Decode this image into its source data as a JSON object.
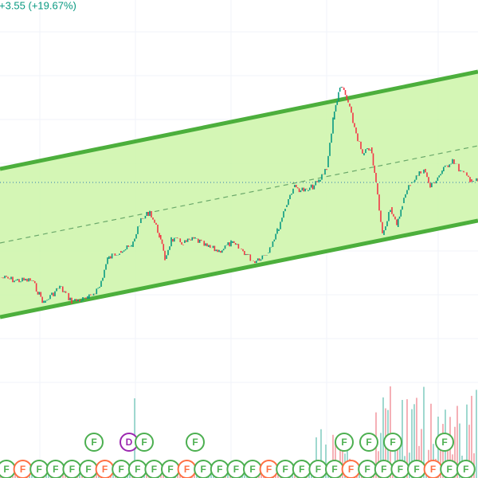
{
  "header": {
    "change": "+3.55 (+19.67%)"
  },
  "events_upper": [
    "F",
    "D",
    "F",
    "F",
    "F",
    "F",
    "F",
    "F"
  ],
  "events_lower": [
    "F",
    "F",
    "F",
    "F",
    "F",
    "F",
    "F",
    "F",
    "F",
    "F",
    "F",
    "F",
    "F",
    "F",
    "F",
    "F",
    "F",
    "F",
    "F",
    "F",
    "F",
    "F",
    "F",
    "F",
    "F",
    "F",
    "F",
    "F",
    "F"
  ]
}
